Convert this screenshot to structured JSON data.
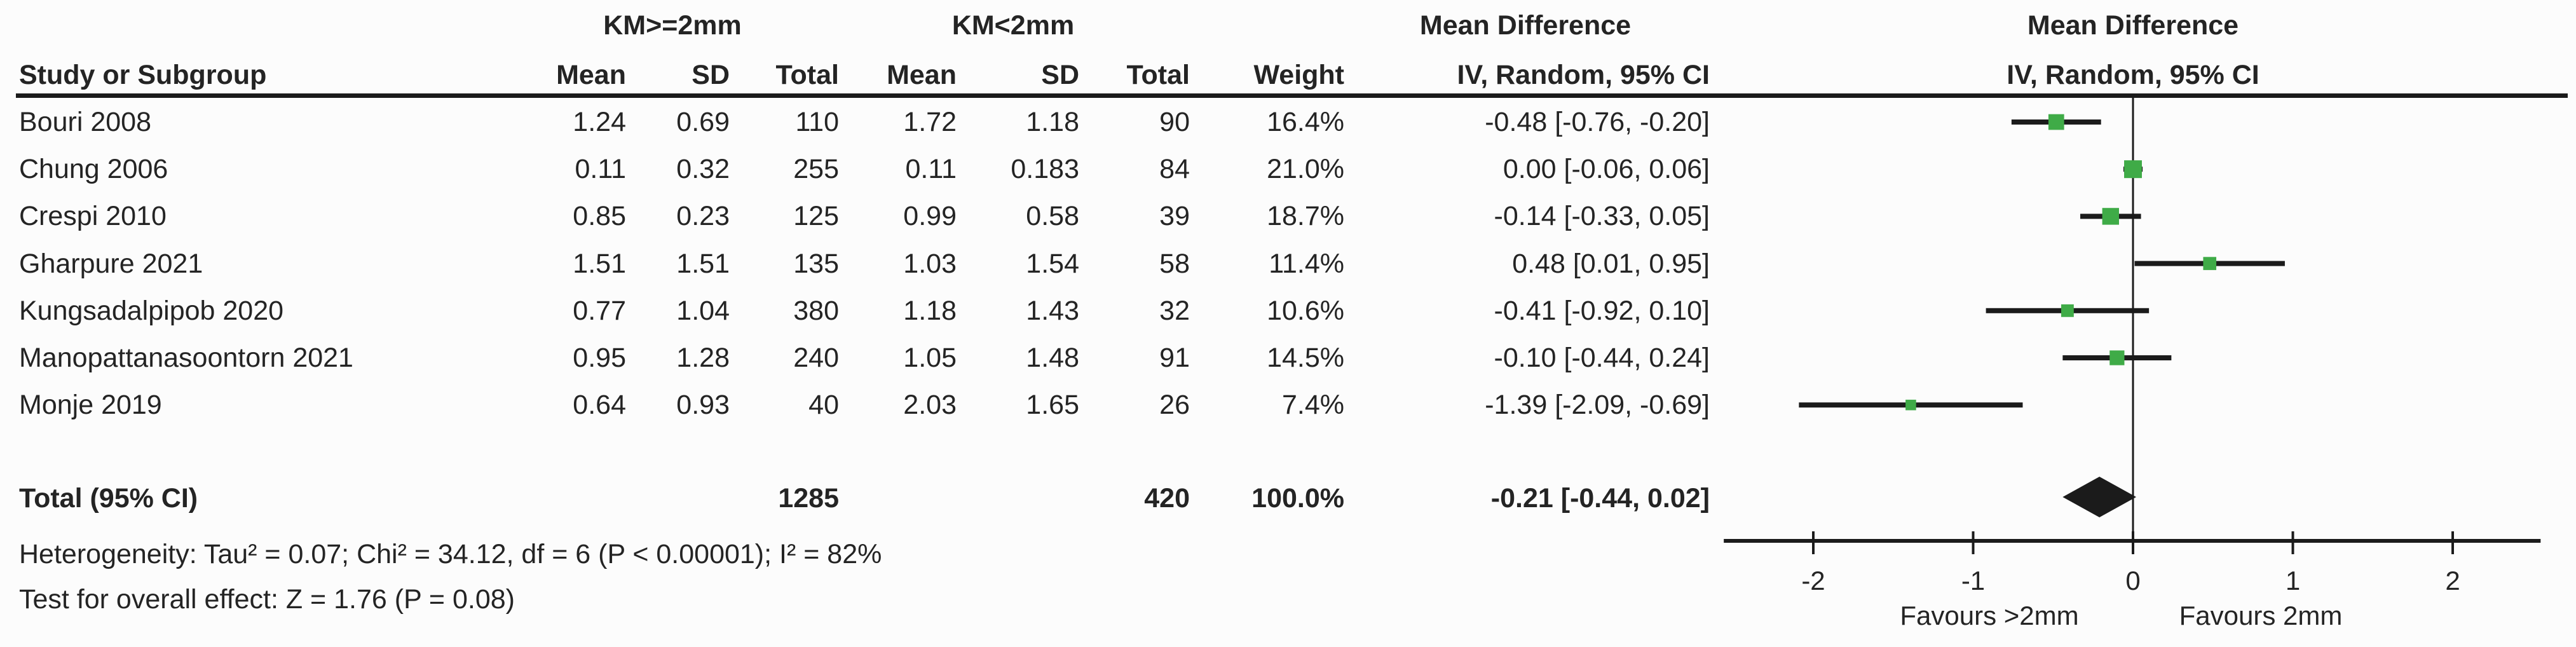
{
  "chart_data": {
    "type": "scatter",
    "subtype": "forest-plot-meta-analysis",
    "groups": {
      "g1": "KM>=2mm",
      "g2": "KM<2mm"
    },
    "effect": {
      "title": "Mean Difference",
      "subtitle": "IV, Random, 95% CI"
    },
    "columns": {
      "study": "Study or Subgroup",
      "mean": "Mean",
      "sd": "SD",
      "total": "Total",
      "weight": "Weight"
    },
    "studies": [
      {
        "name": "Bouri 2008",
        "g1_mean": "1.24",
        "g1_sd": "0.69",
        "g1_total": "110",
        "g2_mean": "1.72",
        "g2_sd": "1.18",
        "g2_total": "90",
        "weight": "16.4%",
        "weight_pct": 16.4,
        "md": -0.48,
        "ci_low": -0.76,
        "ci_high": -0.2,
        "ci_label": "-0.48 [-0.76, -0.20]"
      },
      {
        "name": "Chung 2006",
        "g1_mean": "0.11",
        "g1_sd": "0.32",
        "g1_total": "255",
        "g2_mean": "0.11",
        "g2_sd": "0.183",
        "g2_total": "84",
        "weight": "21.0%",
        "weight_pct": 21.0,
        "md": 0.0,
        "ci_low": -0.06,
        "ci_high": 0.06,
        "ci_label": "0.00 [-0.06, 0.06]"
      },
      {
        "name": "Crespi 2010",
        "g1_mean": "0.85",
        "g1_sd": "0.23",
        "g1_total": "125",
        "g2_mean": "0.99",
        "g2_sd": "0.58",
        "g2_total": "39",
        "weight": "18.7%",
        "weight_pct": 18.7,
        "md": -0.14,
        "ci_low": -0.33,
        "ci_high": 0.05,
        "ci_label": "-0.14 [-0.33, 0.05]"
      },
      {
        "name": "Gharpure 2021",
        "g1_mean": "1.51",
        "g1_sd": "1.51",
        "g1_total": "135",
        "g2_mean": "1.03",
        "g2_sd": "1.54",
        "g2_total": "58",
        "weight": "11.4%",
        "weight_pct": 11.4,
        "md": 0.48,
        "ci_low": 0.01,
        "ci_high": 0.95,
        "ci_label": "0.48 [0.01, 0.95]"
      },
      {
        "name": "Kungsadalpipob 2020",
        "g1_mean": "0.77",
        "g1_sd": "1.04",
        "g1_total": "380",
        "g2_mean": "1.18",
        "g2_sd": "1.43",
        "g2_total": "32",
        "weight": "10.6%",
        "weight_pct": 10.6,
        "md": -0.41,
        "ci_low": -0.92,
        "ci_high": 0.1,
        "ci_label": "-0.41 [-0.92, 0.10]"
      },
      {
        "name": "Manopattanasoontorn 2021",
        "g1_mean": "0.95",
        "g1_sd": "1.28",
        "g1_total": "240",
        "g2_mean": "1.05",
        "g2_sd": "1.48",
        "g2_total": "91",
        "weight": "14.5%",
        "weight_pct": 14.5,
        "md": -0.1,
        "ci_low": -0.44,
        "ci_high": 0.24,
        "ci_label": "-0.10 [-0.44, 0.24]"
      },
      {
        "name": "Monje 2019",
        "g1_mean": "0.64",
        "g1_sd": "0.93",
        "g1_total": "40",
        "g2_mean": "2.03",
        "g2_sd": "1.65",
        "g2_total": "26",
        "weight": "7.4%",
        "weight_pct": 7.4,
        "md": -1.39,
        "ci_low": -2.09,
        "ci_high": -0.69,
        "ci_label": "-1.39 [-2.09, -0.69]"
      }
    ],
    "total_row": {
      "label": "Total (95% CI)",
      "g1_total": "1285",
      "g2_total": "420",
      "weight": "100.0%",
      "md": -0.21,
      "ci_low": -0.44,
      "ci_high": 0.02,
      "ci_label": "-0.21 [-0.44, 0.02]"
    },
    "footnotes": {
      "heterogeneity": "Heterogeneity: Tau² = 0.07; Chi² = 34.12, df = 6 (P < 0.00001); I² = 82%",
      "overall_effect": "Test for overall effect: Z = 1.76 (P = 0.08)"
    },
    "x_axis": {
      "ticks": [
        -2,
        -1,
        0,
        1,
        2
      ],
      "min": -2.56,
      "max": 2.55,
      "favours_left": "Favours >2mm",
      "favours_right": "Favours 2mm"
    },
    "colors": {
      "marker_green": "#3FAB47",
      "line_black": "#1b1b1b",
      "text": "#242424"
    }
  }
}
